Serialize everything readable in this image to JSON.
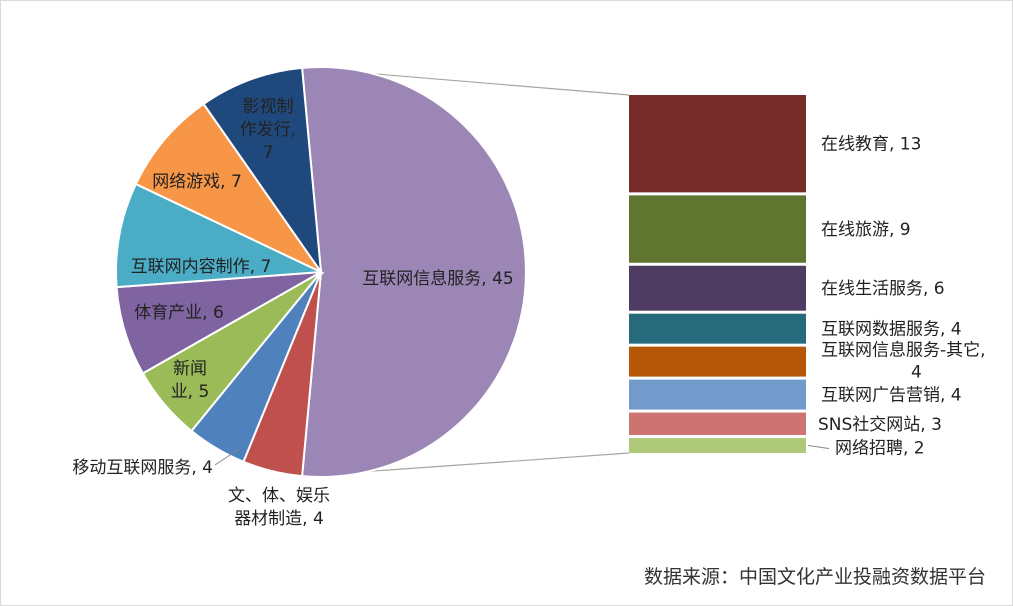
{
  "chart_data": {
    "type": "pie",
    "subtype": "pie-of-bar",
    "pie": {
      "categories": [
        "互联网信息服务",
        "移动互联网服务",
        "文、体、娱乐器材制造",
        "新闻业",
        "体育产业",
        "互联网内容制作",
        "网络游戏",
        "影视制作发行"
      ],
      "values": [
        45,
        4,
        4,
        5,
        6,
        7,
        7,
        7
      ],
      "labels": [
        "互联网信息服务, 45",
        "移动互联网服务, 4",
        "文、体、娱乐器材制造, 4",
        "新闻业, 5",
        "体育产业, 6",
        "互联网内容制作, 7",
        "网络游戏, 7",
        "影视制作发行, 7"
      ],
      "colors": [
        "#9B86B6",
        "#C0504D",
        "#4F81BD",
        "#9BBB59",
        "#8064A2",
        "#4BACC6",
        "#F79646",
        "#1F497D"
      ]
    },
    "breakdown": {
      "parent": "互联网信息服务",
      "categories": [
        "在线教育",
        "在线旅游",
        "在线生活服务",
        "互联网数据服务",
        "互联网信息服务-其它",
        "互联网广告营销",
        "SNS社交网站",
        "网络招聘"
      ],
      "values": [
        13,
        9,
        6,
        4,
        4,
        4,
        3,
        2
      ],
      "labels": [
        "在线教育, 13",
        "在线旅游, 9",
        "在线生活服务, 6",
        "互联网数据服务, 4",
        "互联网信息服务-其它, 4",
        "互联网广告营销, 4",
        "SNS社交网站, 3",
        "网络招聘, 2"
      ],
      "colors": [
        "#772C2A",
        "#5F7530",
        "#4D3B62",
        "#276A7C",
        "#B65708",
        "#729ACA",
        "#CD7371",
        "#AFC97A"
      ]
    },
    "legend": "none",
    "source_note": "数据来源：中国文化产业投融资数据平台"
  }
}
